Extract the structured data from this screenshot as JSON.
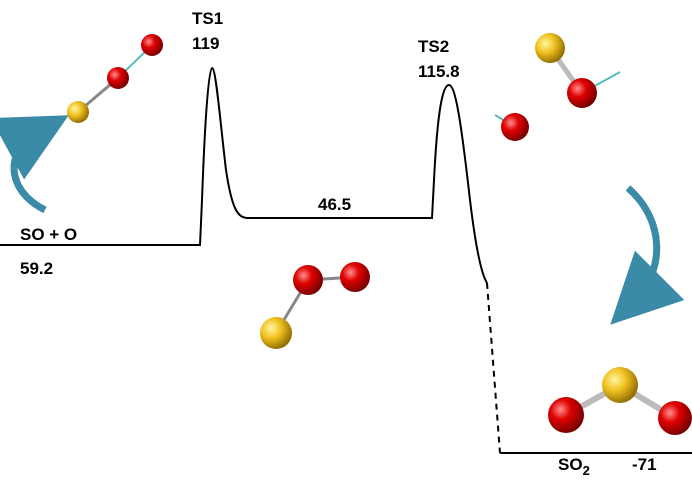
{
  "levels": [
    {
      "label": "SO + O",
      "energy": "59.2"
    },
    {
      "label": "TS1",
      "energy": "119"
    },
    {
      "energy": "46.5"
    },
    {
      "label": "TS2",
      "energy": "115.8"
    },
    {
      "label": {
        "text": "SO",
        "subscript": "2"
      },
      "energy": "-71"
    }
  ]
}
